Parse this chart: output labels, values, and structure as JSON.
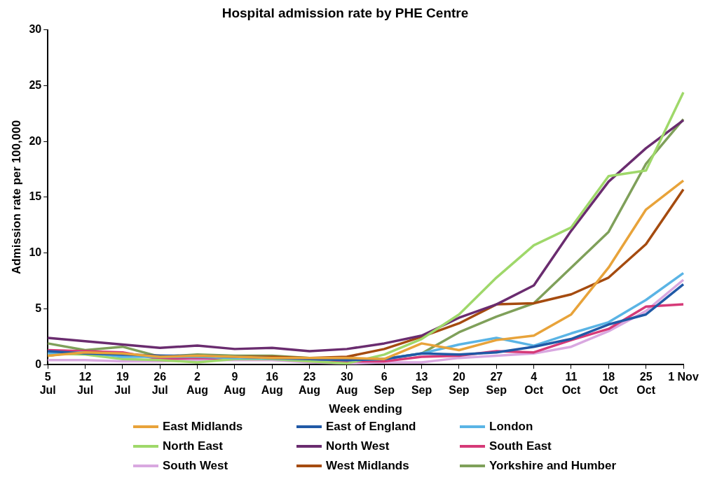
{
  "chart_data": {
    "type": "line",
    "title": "Hospital admission rate by PHE Centre",
    "xlabel": "Week ending",
    "ylabel": "Admission rate per 100,000",
    "categories": [
      "5\nJul",
      "12\nJul",
      "19\nJul",
      "26\nJul",
      "2\nAug",
      "9\nAug",
      "16\nAug",
      "23\nAug",
      "30\nAug",
      "6\nSep",
      "13\nSep",
      "20\nSep",
      "27\nSep",
      "4\nOct",
      "11\nOct",
      "18\nOct",
      "25\nOct",
      "1 Nov"
    ],
    "series": [
      {
        "name": "East Midlands",
        "color": "#e8a33a",
        "values": [
          0.8,
          1.1,
          1.0,
          0.7,
          0.8,
          0.7,
          0.6,
          0.6,
          0.6,
          0.5,
          1.9,
          1.3,
          2.2,
          2.6,
          4.5,
          8.7,
          13.9,
          16.5
        ]
      },
      {
        "name": "East of England",
        "color": "#2059a6",
        "values": [
          1.2,
          1.0,
          0.9,
          0.8,
          0.8,
          0.7,
          0.6,
          0.5,
          0.4,
          0.5,
          1.0,
          0.9,
          1.1,
          1.6,
          2.3,
          3.6,
          4.5,
          7.2
        ]
      },
      {
        "name": "London",
        "color": "#5ab4e5",
        "values": [
          1.0,
          1.1,
          0.7,
          0.7,
          0.7,
          0.6,
          null,
          0.5,
          0.4,
          0.5,
          1.0,
          1.8,
          2.4,
          1.7,
          2.8,
          3.8,
          5.8,
          8.2
        ]
      },
      {
        "name": "North East",
        "color": "#9fd86a",
        "values": [
          1.0,
          0.9,
          0.5,
          0.4,
          0.2,
          0.5,
          0.5,
          0.3,
          0.1,
          0.9,
          2.3,
          4.5,
          7.8,
          10.7,
          12.3,
          16.9,
          17.4,
          24.4
        ]
      },
      {
        "name": "North West",
        "color": "#6a2c6f",
        "values": [
          2.4,
          2.1,
          1.8,
          1.5,
          1.7,
          1.4,
          1.5,
          1.2,
          1.4,
          1.9,
          2.6,
          4.2,
          5.4,
          7.1,
          12.0,
          16.4,
          19.4,
          21.9
        ]
      },
      {
        "name": "South East",
        "color": "#d63a78",
        "values": [
          1.3,
          1.2,
          1.1,
          0.5,
          0.6,
          0.5,
          0.5,
          0.5,
          0.3,
          0.3,
          0.7,
          0.8,
          1.2,
          1.1,
          2.2,
          3.2,
          5.2,
          5.4
        ]
      },
      {
        "name": "South West",
        "color": "#d9a8e0",
        "values": [
          0.4,
          0.4,
          0.3,
          0.3,
          0.4,
          0.4,
          0.4,
          0.2,
          0.1,
          0.2,
          0.2,
          0.6,
          0.8,
          1.0,
          1.6,
          3.0,
          4.8,
          7.6
        ]
      },
      {
        "name": "West Midlands",
        "color": "#a54b0f",
        "values": [
          0.8,
          1.2,
          0.9,
          0.8,
          0.7,
          0.7,
          0.7,
          0.6,
          0.7,
          1.4,
          2.5,
          3.7,
          5.4,
          5.5,
          6.3,
          7.8,
          10.8,
          15.7
        ]
      },
      {
        "name": "Yorkshire and Humber",
        "color": "#7fa05a",
        "values": [
          1.9,
          1.3,
          1.6,
          0.7,
          0.9,
          0.8,
          0.8,
          0.6,
          0.5,
          0.5,
          1.0,
          2.9,
          4.3,
          5.5,
          8.7,
          11.9,
          18.0,
          22.0
        ]
      }
    ],
    "ylim": [
      0,
      30
    ],
    "yticks": [
      0,
      5,
      10,
      15,
      20,
      25,
      30
    ],
    "grid": false,
    "legend": "bottom",
    "marker": "none",
    "line_style": "solid"
  }
}
